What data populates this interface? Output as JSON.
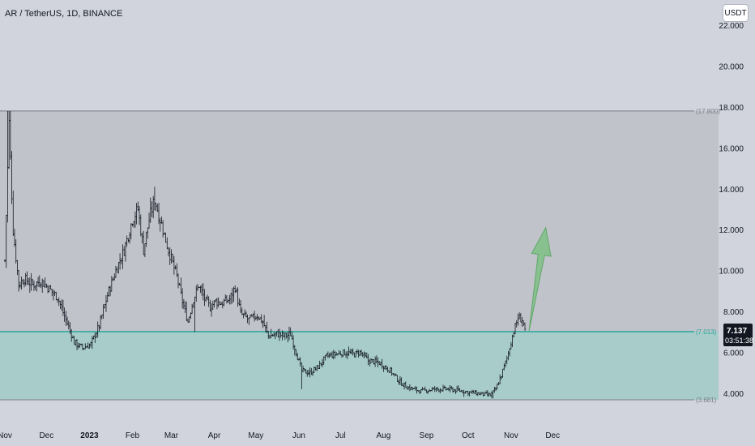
{
  "header": {
    "title": "AR / TetherUS, 1D, BINANCE",
    "currency_button": "USDT"
  },
  "colors": {
    "background": "#d1d4dc",
    "upper_zone": "#c1c3ca",
    "lower_zone": "#a7ccc9",
    "support_line": "#26a69a",
    "candle": "#131722",
    "arrow": "#7fbf86"
  },
  "price_label": {
    "price": "7.137",
    "countdown": "03:51:38"
  },
  "levels": [
    {
      "value": 17.8,
      "label": "(17.800)"
    },
    {
      "value": 7.013,
      "label": "(7.013)"
    },
    {
      "value": 3.681,
      "label": "(3.681)"
    }
  ],
  "chart_data": {
    "type": "candlestick",
    "title": "AR / TetherUS, 1D, BINANCE",
    "ylim": [
      3.7,
      22.6
    ],
    "y_ticks": [
      {
        "value": 22,
        "label": "22.000"
      },
      {
        "value": 20,
        "label": "20.000"
      },
      {
        "value": 18,
        "label": "18.000"
      },
      {
        "value": 16,
        "label": "16.000"
      },
      {
        "value": 14,
        "label": "14.000"
      },
      {
        "value": 12,
        "label": "12.000"
      },
      {
        "value": 10,
        "label": "10.000"
      },
      {
        "value": 8,
        "label": "8.000"
      },
      {
        "value": 6,
        "label": "6.000"
      },
      {
        "value": 4,
        "label": "4.000"
      }
    ],
    "x_ticks": [
      {
        "day": 0,
        "label": "Nov",
        "bold": false
      },
      {
        "day": 30,
        "label": "Dec",
        "bold": false
      },
      {
        "day": 61,
        "label": "2023",
        "bold": true
      },
      {
        "day": 92,
        "label": "Feb",
        "bold": false
      },
      {
        "day": 120,
        "label": "Mar",
        "bold": false
      },
      {
        "day": 151,
        "label": "Apr",
        "bold": false
      },
      {
        "day": 181,
        "label": "May",
        "bold": false
      },
      {
        "day": 212,
        "label": "Jun",
        "bold": false
      },
      {
        "day": 242,
        "label": "Jul",
        "bold": false
      },
      {
        "day": 273,
        "label": "Aug",
        "bold": false
      },
      {
        "day": 304,
        "label": "Sep",
        "bold": false
      },
      {
        "day": 334,
        "label": "Oct",
        "bold": false
      },
      {
        "day": 365,
        "label": "Nov",
        "bold": false
      },
      {
        "day": 395,
        "label": "Dec",
        "bold": false
      }
    ],
    "zones": [
      {
        "from": 7.013,
        "to": 17.8
      },
      {
        "from": 3.681,
        "to": 7.013
      }
    ],
    "close_anchors": [
      [
        0,
        10.5
      ],
      [
        3,
        17.2
      ],
      [
        6,
        12.0
      ],
      [
        10,
        9.3
      ],
      [
        14,
        9.6
      ],
      [
        20,
        9.3
      ],
      [
        26,
        9.5
      ],
      [
        32,
        9.1
      ],
      [
        38,
        8.7
      ],
      [
        44,
        7.6
      ],
      [
        50,
        6.5
      ],
      [
        56,
        6.2
      ],
      [
        62,
        6.4
      ],
      [
        68,
        7.3
      ],
      [
        74,
        8.8
      ],
      [
        80,
        10.0
      ],
      [
        86,
        11.0
      ],
      [
        92,
        12.5
      ],
      [
        96,
        13.0
      ],
      [
        100,
        11.0
      ],
      [
        104,
        12.5
      ],
      [
        108,
        13.5
      ],
      [
        112,
        12.5
      ],
      [
        118,
        11.0
      ],
      [
        124,
        9.7
      ],
      [
        128,
        8.5
      ],
      [
        132,
        7.5
      ],
      [
        136,
        8.6
      ],
      [
        140,
        9.3
      ],
      [
        144,
        8.6
      ],
      [
        148,
        8.2
      ],
      [
        152,
        8.5
      ],
      [
        156,
        8.4
      ],
      [
        162,
        8.6
      ],
      [
        166,
        9.2
      ],
      [
        170,
        7.9
      ],
      [
        176,
        7.6
      ],
      [
        182,
        7.8
      ],
      [
        186,
        7.5
      ],
      [
        190,
        6.8
      ],
      [
        196,
        6.9
      ],
      [
        202,
        6.8
      ],
      [
        206,
        6.9
      ],
      [
        210,
        6.0
      ],
      [
        214,
        5.1
      ],
      [
        220,
        5.0
      ],
      [
        226,
        5.3
      ],
      [
        232,
        5.8
      ],
      [
        238,
        5.9
      ],
      [
        246,
        6.0
      ],
      [
        252,
        5.9
      ],
      [
        256,
        6.0
      ],
      [
        262,
        5.6
      ],
      [
        270,
        5.5
      ],
      [
        278,
        5.1
      ],
      [
        284,
        4.6
      ],
      [
        290,
        4.3
      ],
      [
        300,
        4.1
      ],
      [
        310,
        4.2
      ],
      [
        320,
        4.2
      ],
      [
        330,
        4.1
      ],
      [
        340,
        4.0
      ],
      [
        350,
        3.9
      ],
      [
        354,
        4.2
      ],
      [
        358,
        4.9
      ],
      [
        362,
        5.7
      ],
      [
        366,
        6.8
      ],
      [
        370,
        7.7
      ],
      [
        373,
        7.6
      ],
      [
        375,
        7.14
      ]
    ],
    "arrow": {
      "start_day": 378,
      "start_value": 7.05,
      "end_day": 390,
      "end_value": 12.1
    },
    "last_price": 7.137
  }
}
